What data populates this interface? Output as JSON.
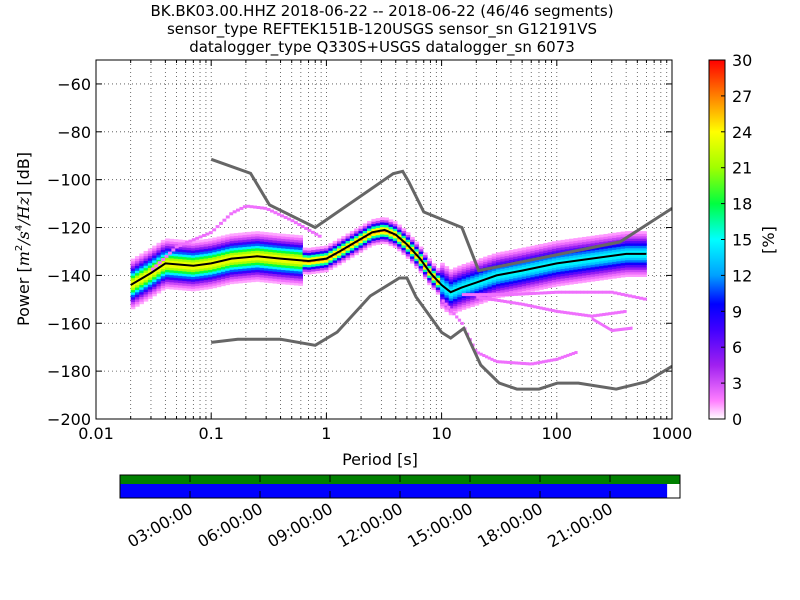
{
  "chart_data": {
    "type": "heatmap",
    "title_lines": [
      "BK.BK03.00.HHZ   2018-06-22 -- 2018-06-22  (46/46 segments)",
      "sensor_type REFTEK151B-120USGS sensor_sn G12191VS",
      "datalogger_type Q330S+USGS datalogger_sn 6073"
    ],
    "xlabel": "Period [s]",
    "ylabel_parts": [
      "Power [",
      "m",
      "2",
      "/s",
      "4",
      "/Hz",
      "] [dB]"
    ],
    "x_scale": "log",
    "xlim": [
      0.01,
      1000
    ],
    "ylim": [
      -200,
      -50
    ],
    "x_tick_labels": [
      "0.01",
      "0.1",
      "1",
      "10",
      "100",
      "1000"
    ],
    "y_tick_labels": [
      "-200",
      "-180",
      "-160",
      "-140",
      "-120",
      "-100",
      "-80",
      "-60"
    ],
    "grid": true,
    "colorbar": {
      "label": "[%]",
      "min": 0,
      "max": 30,
      "tick_labels": [
        "0",
        "3",
        "6",
        "9",
        "12",
        "15",
        "18",
        "21",
        "24",
        "27",
        "30"
      ],
      "colormap": "pqlx"
    },
    "noise_model_high": [
      [
        0.1,
        -91.5
      ],
      [
        0.22,
        -97.4
      ],
      [
        0.32,
        -110.5
      ],
      [
        0.8,
        -120
      ],
      [
        3.8,
        -97.5
      ],
      [
        4.6,
        -96.5
      ],
      [
        5.2,
        -101
      ],
      [
        7,
        -113.5
      ],
      [
        15,
        -120
      ],
      [
        21,
        -138
      ],
      [
        354,
        -126
      ],
      [
        1000,
        -112
      ]
    ],
    "noise_model_low": [
      [
        0.1,
        -168
      ],
      [
        0.17,
        -166.7
      ],
      [
        0.4,
        -166.7
      ],
      [
        0.8,
        -169.2
      ],
      [
        1.24,
        -163.7
      ],
      [
        2.4,
        -148.6
      ],
      [
        4.3,
        -141.1
      ],
      [
        5,
        -141.1
      ],
      [
        6,
        -149
      ],
      [
        10,
        -163.8
      ],
      [
        12,
        -166.2
      ],
      [
        15.6,
        -162.1
      ],
      [
        21.9,
        -177.5
      ],
      [
        31.6,
        -185
      ],
      [
        45,
        -187.5
      ],
      [
        70,
        -187.5
      ],
      [
        101,
        -185
      ],
      [
        154,
        -185
      ],
      [
        328,
        -187.5
      ],
      [
        600,
        -184.4
      ],
      [
        1000,
        -178
      ]
    ],
    "mode_curve": [
      [
        0.02,
        -144
      ],
      [
        0.03,
        -139
      ],
      [
        0.04,
        -135
      ],
      [
        0.07,
        -136
      ],
      [
        0.1,
        -135
      ],
      [
        0.15,
        -133
      ],
      [
        0.25,
        -132
      ],
      [
        0.4,
        -133
      ],
      [
        0.7,
        -134
      ],
      [
        1.0,
        -133
      ],
      [
        1.3,
        -130
      ],
      [
        1.8,
        -126
      ],
      [
        2.5,
        -122
      ],
      [
        3.2,
        -121
      ],
      [
        4.0,
        -123
      ],
      [
        5.0,
        -127
      ],
      [
        6.5,
        -133
      ],
      [
        8.0,
        -139
      ],
      [
        10,
        -144
      ],
      [
        12,
        -147
      ],
      [
        15,
        -145
      ],
      [
        20,
        -143
      ],
      [
        30,
        -140
      ],
      [
        50,
        -138
      ],
      [
        100,
        -135
      ],
      [
        200,
        -133
      ],
      [
        400,
        -131
      ],
      [
        600,
        -131
      ]
    ],
    "psd_density_bands": [
      {
        "x": [
          0.02,
          0.6
        ],
        "y_mid": -135,
        "spread": 4,
        "percent_peak": 24
      },
      {
        "x": [
          0.6,
          10
        ],
        "y_mid": -127,
        "spread": 2,
        "percent_peak": 27
      },
      {
        "x": [
          10,
          600
        ],
        "y_mid": -139,
        "spread": 4,
        "percent_peak": 15
      }
    ],
    "outlier_traces": [
      {
        "points": [
          [
            0.03,
            -138
          ],
          [
            0.05,
            -128
          ],
          [
            0.1,
            -122
          ],
          [
            0.15,
            -114
          ],
          [
            0.2,
            -111
          ],
          [
            0.3,
            -112
          ],
          [
            0.5,
            -117
          ],
          [
            0.9,
            -124
          ]
        ],
        "percent": 2
      },
      {
        "points": [
          [
            10,
            -150
          ],
          [
            15,
            -160
          ],
          [
            20,
            -172
          ],
          [
            30,
            -176
          ],
          [
            60,
            -177
          ],
          [
            100,
            -175
          ],
          [
            150,
            -172
          ]
        ],
        "percent": 2
      },
      {
        "points": [
          [
            20,
            -149
          ],
          [
            50,
            -152
          ],
          [
            100,
            -155
          ],
          [
            200,
            -157
          ],
          [
            400,
            -155
          ]
        ],
        "percent": 2
      },
      {
        "points": [
          [
            15,
            -148
          ],
          [
            40,
            -148
          ],
          [
            100,
            -147
          ],
          [
            300,
            -147
          ],
          [
            600,
            -150
          ]
        ],
        "percent": 2
      },
      {
        "points": [
          [
            200,
            -158
          ],
          [
            300,
            -163
          ],
          [
            450,
            -162
          ]
        ],
        "percent": 2
      }
    ]
  },
  "timeline": {
    "tick_labels": [
      "03:00:00",
      "06:00:00",
      "09:00:00",
      "12:00:00",
      "15:00:00",
      "18:00:00",
      "21:00:00"
    ],
    "data_availability_color": "#008000",
    "psd_coverage_color": "#0000ff",
    "psd_coverage_fraction": 0.977
  },
  "colors": {
    "noise_model": "#666666",
    "mode_curve": "#000000"
  }
}
